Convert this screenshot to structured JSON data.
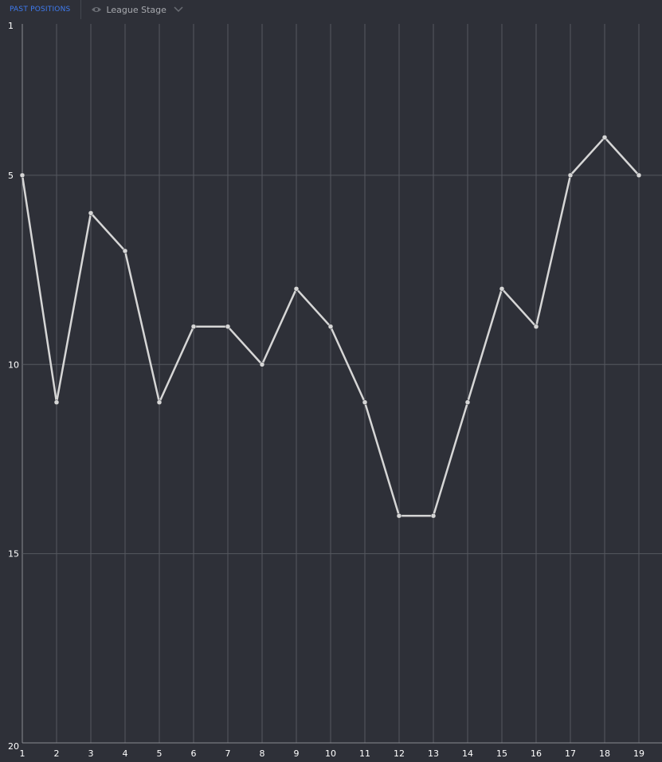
{
  "header": {
    "tab_label": "PAST POSITIONS",
    "stage_label": "League Stage",
    "stage_icon": "eye-icon",
    "dropdown_icon": "chevron-down-icon",
    "accent_color": "#3f7bf0"
  },
  "chart_data": {
    "type": "line",
    "title": "",
    "xlabel": "",
    "ylabel": "",
    "x": [
      1,
      2,
      3,
      4,
      5,
      6,
      7,
      8,
      9,
      10,
      11,
      12,
      13,
      14,
      15,
      16,
      17,
      18,
      19
    ],
    "values": [
      5,
      11,
      6,
      7,
      11,
      9,
      9,
      10,
      8,
      9,
      11,
      14,
      14,
      11,
      8,
      9,
      5,
      4,
      5
    ],
    "xlim": [
      1,
      19
    ],
    "ylim": [
      1,
      20
    ],
    "y_inverted": true,
    "x_ticks": [
      "1",
      "2",
      "3",
      "4",
      "5",
      "6",
      "7",
      "8",
      "9",
      "10",
      "11",
      "12",
      "13",
      "14",
      "15",
      "16",
      "17",
      "18",
      "19"
    ],
    "y_ticks": [
      "1",
      "5",
      "10",
      "15",
      "20"
    ],
    "y_tick_values": [
      1,
      5,
      10,
      15,
      20
    ],
    "grid": true,
    "line_color": "#d6d6d6"
  }
}
